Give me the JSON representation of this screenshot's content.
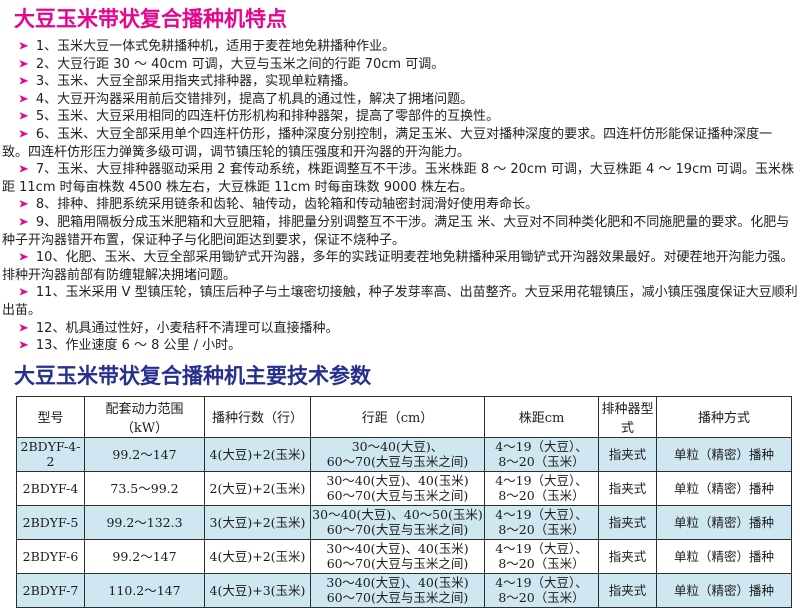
{
  "icons": {
    "bullet_arrow": "➤"
  },
  "colors": {
    "feature_title": "#e6058c",
    "bullet_arrow": "#e6058c",
    "specs_title": "#262f8e",
    "table_row_alt": "#cfe7f1",
    "table_border": "#2e2e2e"
  },
  "features": {
    "title": "大豆玉米带状复合播种机特点",
    "items": [
      "1、玉米大豆一体式免耕播种机，适用于麦茬地免耕播种作业。",
      "2、大豆行距 30 ～ 40cm 可调，大豆与玉米之间的行距 70cm 可调。",
      "3、玉米、大豆全部采用指夹式排种器，实现单粒精播。",
      "4、大豆开沟器采用前后交错排列，提高了机具的通过性，解决了拥堵问题。",
      "5、玉米、大豆采用相同的四连杆仿形机构和排种器架，提高了零部件的互换性。",
      "6、玉米、大豆全部采用单个四连杆仿形，播种深度分别控制，满足玉米、大豆对播种深度的要求。四连杆仿形能保证播种深度一致。四连杆仿形压力弹簧多级可调，调节镇压轮的镇压强度和开沟器的开沟能力。",
      "7、玉米、大豆排种器驱动采用 2 套传动系统，株距调整互不干涉。玉米株距 8 ～ 20cm 可调，大豆株距 4 ～ 19cm 可调。玉米株距 11cm 时每亩株数 4500 株左右，大豆株距 11cm 时每亩珠数 9000 株左右。",
      "8、排种、排肥系统采用链条和齿轮、轴传动，齿轮箱和传动轴密封润滑好使用寿命长。",
      "9、肥箱用隔板分成玉米肥箱和大豆肥箱，排肥量分别调整互不干涉。满足玉 米、大豆对不同种类化肥和不同施肥量的要求。化肥与种子开沟器错开布置，保证种子与化肥间距达到要求，保证不烧种子。",
      "10、化肥、玉米、大豆全部采用锄铲式开沟器，多年的实践证明麦茬地免耕播种采用锄铲式开沟器效果最好。对硬茬地开沟能力强。排种开沟器前部有防缠辊解决拥堵问题。",
      "11、玉米采用 V 型镇压轮，镇压后种子与土壤密切接触，种子发芽率高、出苗整齐。大豆采用花辊镇压，减小镇压强度保证大豆顺利出苗。",
      "12、机具通过性好，小麦秸秆不清理可以直接播种。",
      "13、作业速度 6 ～ 8 公里 / 小时。"
    ]
  },
  "specs": {
    "title": "大豆玉米带状复合播种机主要技术参数",
    "table": {
      "headers": [
        "型号",
        "配套动力范围（kW）",
        "播种行数（行）",
        "行距（cm）",
        "株距cm",
        "排种器型式",
        "播种方式"
      ],
      "rows": [
        {
          "model": "2BDYF-4-2",
          "power": "99.2～147",
          "rows_config": "4(大豆)+2(玉米)",
          "row_spacing1": "30～40(大豆)、",
          "row_spacing2": "60～70(大豆与玉米之间)",
          "plant_spacing1": "4～19（大豆）、",
          "plant_spacing2": "8～20（玉米）",
          "meter_type": "指夹式",
          "seed_mode": "单粒（精密）播种"
        },
        {
          "model": "2BDYF-4",
          "power": "73.5～99.2",
          "rows_config": "2(大豆)+2(玉米)",
          "row_spacing1": "30～40(大豆)、40(玉米)",
          "row_spacing2": "60～70(大豆与玉米之间)",
          "plant_spacing1": "4～19（大豆）、",
          "plant_spacing2": "8～20（玉米）",
          "meter_type": "指夹式",
          "seed_mode": "单粒（精密）播种"
        },
        {
          "model": "2BDYF-5",
          "power": "99.2～132.3",
          "rows_config": "3(大豆)+2(玉米)",
          "row_spacing1": "30～40(大豆)、40～50(玉米)",
          "row_spacing2": "60～70(大豆与玉米之间)",
          "plant_spacing1": "4～19（大豆）、",
          "plant_spacing2": "8～20（玉米）",
          "meter_type": "指夹式",
          "seed_mode": "单粒（精密）播种"
        },
        {
          "model": "2BDYF-6",
          "power": "99.2～147",
          "rows_config": "4(大豆)+2(玉米)",
          "row_spacing1": "30～40(大豆)、40(玉米)",
          "row_spacing2": "60～70(大豆与玉米之间)",
          "plant_spacing1": "4～19（大豆）、",
          "plant_spacing2": "8～20（玉米）",
          "meter_type": "指夹式",
          "seed_mode": "单粒（精密）播种"
        },
        {
          "model": "2BDYF-7",
          "power": "110.2～147",
          "rows_config": "4(大豆)+3(玉米)",
          "row_spacing1": "30～40(大豆)、40(玉米)",
          "row_spacing2": "60～70(大豆与玉米之间)",
          "plant_spacing1": "4～19（大豆）、",
          "plant_spacing2": "8～20（玉米）",
          "meter_type": "指夹式",
          "seed_mode": "单粒（精密）播种"
        }
      ]
    }
  }
}
